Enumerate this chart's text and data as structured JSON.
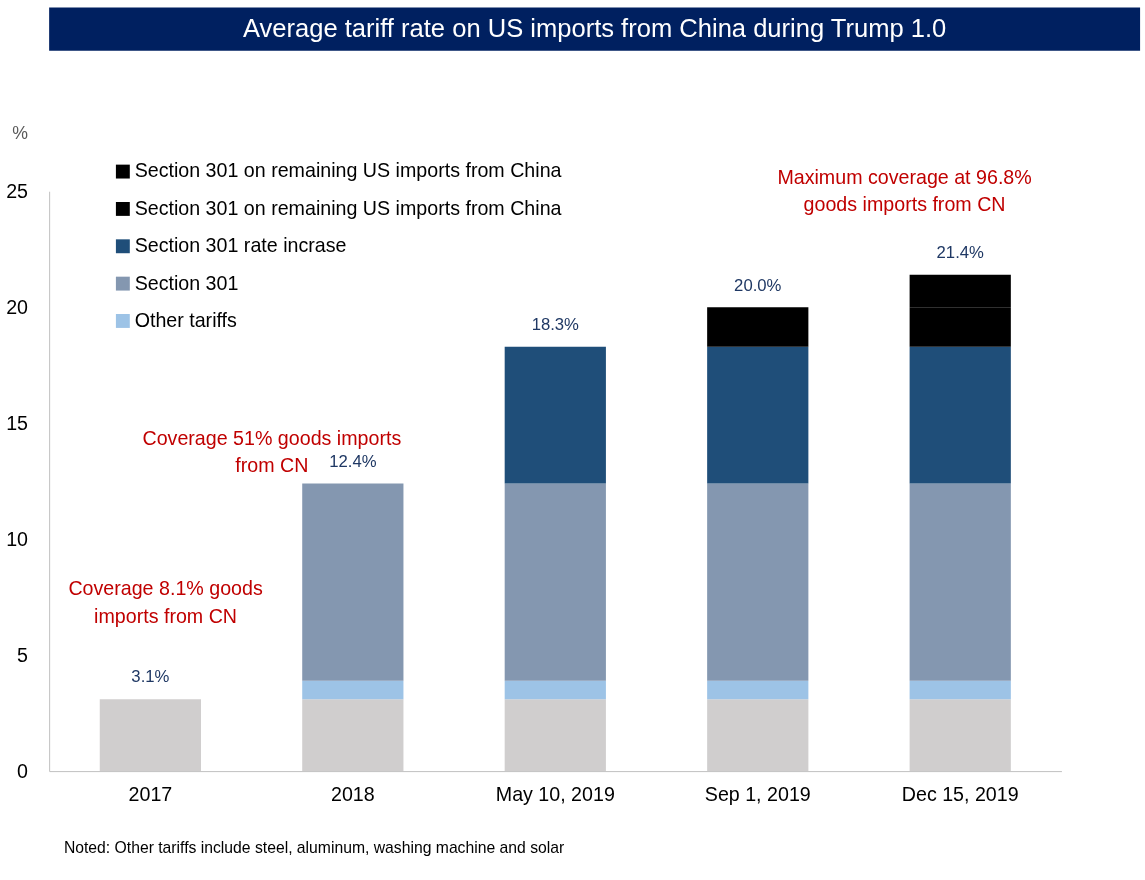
{
  "chart_data": {
    "type": "bar",
    "title": "Average tariff rate on US imports from China during Trump 1.0",
    "ylabel": "%",
    "categories": [
      "2017",
      "2018",
      "May  10, 2019",
      "Sep 1, 2019",
      "Dec 15, 2019"
    ],
    "stacked": true,
    "ylim": [
      0,
      25
    ],
    "yticks": [
      0,
      5,
      10,
      15,
      20,
      25
    ],
    "grid": false,
    "legend": "top left",
    "series": [
      {
        "color": "#d0cece",
        "values": [
          3.1,
          3.1,
          3.1,
          3.1,
          3.1
        ]
      },
      {
        "name": "Other tariffs",
        "color": "#9dc3e6",
        "values": [
          null,
          0.8,
          0.8,
          0.8,
          0.8
        ]
      },
      {
        "name": "Section 301",
        "color": "#8497b0",
        "values": [
          null,
          8.5,
          8.5,
          8.5,
          8.5
        ]
      },
      {
        "name": "Section 301 rate incrase",
        "color": "#1f4e79",
        "values": [
          null,
          null,
          5.9,
          5.9,
          5.9
        ]
      },
      {
        "name": "Section 301 on remaining US imports from China",
        "color": "#000000",
        "values": [
          null,
          null,
          null,
          1.7,
          1.7
        ]
      },
      {
        "name": "Section 301 on remaining US imports from China",
        "color": "#000000",
        "values": [
          null,
          null,
          null,
          null,
          1.4
        ]
      }
    ],
    "totals": [
      "3.1%",
      "12.4%",
      "18.3%",
      "20.0%",
      "21.4%"
    ],
    "annotations": [
      "Coverage 8.1% goods\nimports from CN",
      "Coverage 51% goods imports\nfrom CN",
      "Maximum coverage at 96.8%\ngoods imports from CN",
      "Noted: Other tariffs include steel, aluminum, washing machine and solar"
    ]
  }
}
